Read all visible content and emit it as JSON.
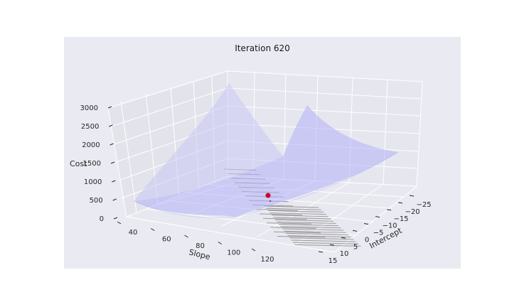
{
  "chart_data": {
    "type": "surface3d",
    "title": "Iteration 620",
    "xlabel": "Slope",
    "ylabel": "Intercept",
    "zlabel": "Cost",
    "x_ticks": [
      "40",
      "60",
      "80",
      "100",
      "120"
    ],
    "y_ticks": [
      "15",
      "10",
      "5",
      "0",
      "−5",
      "−10",
      "−15",
      "−20",
      "−25"
    ],
    "z_ticks": [
      "0",
      "500",
      "1000",
      "1500",
      "2000",
      "2500",
      "3000"
    ],
    "zlim": [
      0,
      3000
    ],
    "current_point": {
      "slope": 79,
      "intercept": -3,
      "cost": 160
    },
    "surface_color": "#8888ff",
    "point_color": "#c8002a",
    "pane_color": "#eaeaf2",
    "contours": true
  }
}
